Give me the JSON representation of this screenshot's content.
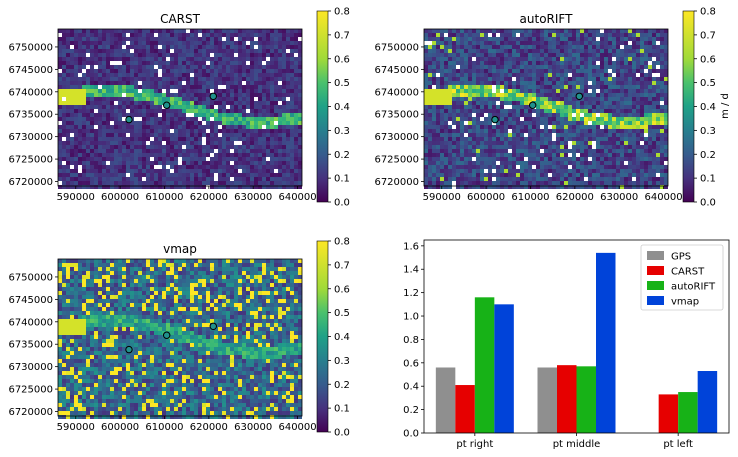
{
  "colors": {
    "gps": "#8f8f8f",
    "carst": "#e60000",
    "autorift": "#17b217",
    "vmap": "#0043d9",
    "marker_fill": "#21918c"
  },
  "colormap": "viridis",
  "panels": [
    {
      "title": "CARST",
      "type": "heatmap",
      "x_ticks": [
        "590000",
        "600000",
        "610000",
        "620000",
        "630000",
        "640000"
      ],
      "y_ticks": [
        "6750000",
        "6745000",
        "6740000",
        "6735000",
        "6730000",
        "6725000",
        "6720000"
      ],
      "xlim": [
        586000,
        641000
      ],
      "ylim": [
        6719000,
        6754000
      ],
      "colorbar_ticks": [
        "0.8",
        "0.7",
        "0.6",
        "0.5",
        "0.4",
        "0.3",
        "0.2",
        "0.1",
        "0.0"
      ],
      "colorbar_label": "",
      "range": [
        0,
        0.8
      ]
    },
    {
      "title": "autoRIFT",
      "type": "heatmap",
      "x_ticks": [
        "590000",
        "600000",
        "610000",
        "620000",
        "630000",
        "640000"
      ],
      "y_ticks": [
        "6750000",
        "6745000",
        "6740000",
        "6735000",
        "6730000",
        "6725000",
        "6720000"
      ],
      "xlim": [
        586000,
        641000
      ],
      "ylim": [
        6719000,
        6754000
      ],
      "colorbar_ticks": [
        "0.8",
        "0.7",
        "0.6",
        "0.5",
        "0.4",
        "0.3",
        "0.2",
        "0.1",
        "0.0"
      ],
      "colorbar_label": "m / d",
      "range": [
        0,
        0.8
      ]
    },
    {
      "title": "vmap",
      "type": "heatmap",
      "x_ticks": [
        "590000",
        "600000",
        "610000",
        "620000",
        "630000",
        "640000"
      ],
      "y_ticks": [
        "6750000",
        "6745000",
        "6740000",
        "6735000",
        "6730000",
        "6725000",
        "6720000"
      ],
      "xlim": [
        586000,
        641000
      ],
      "ylim": [
        6719000,
        6754000
      ],
      "colorbar_ticks": [
        "0.8",
        "0.7",
        "0.6",
        "0.5",
        "0.4",
        "0.3",
        "0.2",
        "0.1",
        "0.0"
      ],
      "colorbar_label": "",
      "range": [
        0,
        0.8
      ]
    }
  ],
  "points": [
    {
      "name": "pt right",
      "x": 621000,
      "y": 6739000
    },
    {
      "name": "pt middle",
      "x": 610500,
      "y": 6737000
    },
    {
      "name": "pt left",
      "x": 602000,
      "y": 6733800
    }
  ],
  "chart_data": {
    "type": "bar",
    "categories": [
      "pt right",
      "pt middle",
      "pt left"
    ],
    "series": [
      {
        "name": "GPS",
        "values": [
          0.56,
          0.56,
          null
        ]
      },
      {
        "name": "CARST",
        "values": [
          0.41,
          0.58,
          0.33
        ]
      },
      {
        "name": "autoRIFT",
        "values": [
          1.16,
          0.57,
          0.35
        ]
      },
      {
        "name": "vmap",
        "values": [
          1.1,
          1.54,
          0.53
        ]
      }
    ],
    "ylim": [
      0,
      1.65
    ],
    "y_ticks": [
      "0.0",
      "0.2",
      "0.4",
      "0.6",
      "0.8",
      "1.0",
      "1.2",
      "1.4",
      "1.6"
    ],
    "legend": "top-right",
    "title": "",
    "xlabel": "",
    "ylabel": ""
  }
}
